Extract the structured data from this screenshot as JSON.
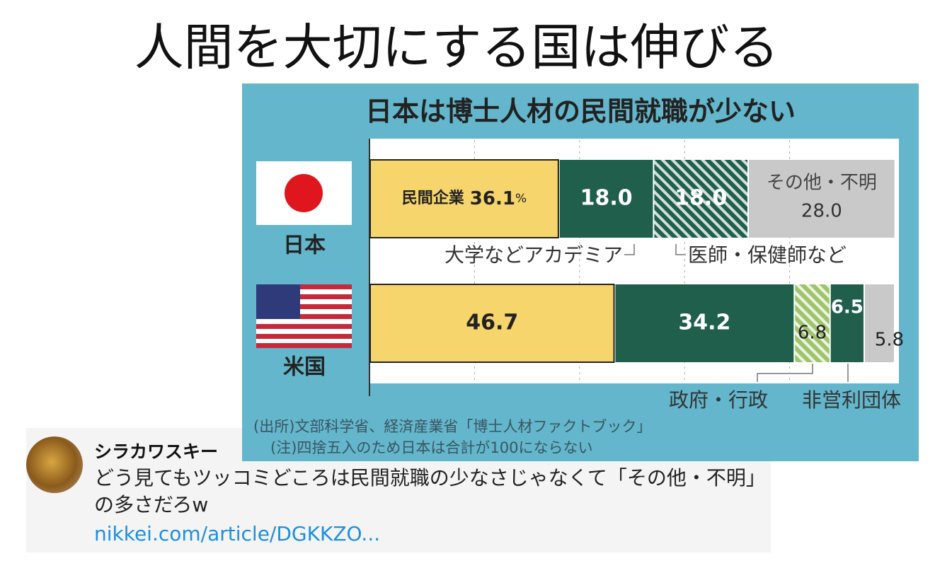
{
  "headline": "人間を大切にする国は伸びる",
  "chart_data": {
    "type": "stacked-bar-horizontal",
    "title": "日本は博士人材の民間就職が少ない",
    "xlim": [
      0,
      100
    ],
    "xticks": [
      0,
      20,
      40,
      60,
      80,
      100
    ],
    "grid": true,
    "bars": [
      {
        "category": "日本",
        "segments": [
          {
            "name": "民間企業",
            "value": 36.1,
            "unit": "%",
            "color": "#f6d56c"
          },
          {
            "annotation": "大学などアカデミア",
            "value": 18,
            "value_label": "18.0",
            "color": "#1f5f4c"
          },
          {
            "annotation": "医師・保健師など",
            "value": 18,
            "value_label": "18.0",
            "color": "#1f5f4c",
            "hatch": true
          },
          {
            "name": "その他・不明",
            "value": 28,
            "value_label": "28.0",
            "color": "#c9c9c9"
          }
        ]
      },
      {
        "category": "米国",
        "segments": [
          {
            "value": 46.7,
            "color": "#f6d56c"
          },
          {
            "value": 34.2,
            "color": "#1f5f4c"
          },
          {
            "annotation": "政府・行政",
            "value": 6.8,
            "color": "#9ec46c",
            "hatch": true
          },
          {
            "annotation": "非営利団体",
            "value": 6.5,
            "color": "#1f5f4c"
          },
          {
            "value": 5.8,
            "color": "#c9c9c9"
          }
        ]
      }
    ],
    "notes": [
      "(出所)文部科学省、経済産業省「博士人材ファクトブック」",
      "(注)四捨五入のため日本は合計が100にならない"
    ]
  },
  "tweet": {
    "author": "シラカワスキー",
    "text": "どう見てもツッコミどころは民間就職の少なさじゃなくて「その他・不明」の多さだろw",
    "link": "nikkei.com/article/DGKKZO..."
  }
}
